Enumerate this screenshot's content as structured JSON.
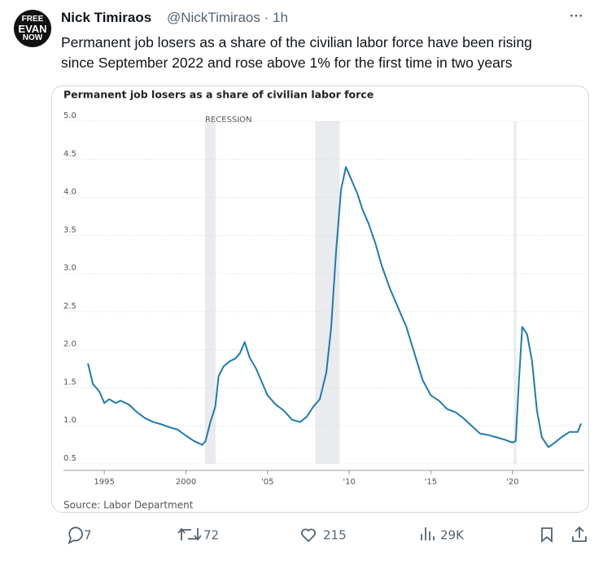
{
  "tweet": {
    "avatar_lines": [
      "FREE",
      "EVAN",
      "NOW"
    ],
    "author": "Nick Timiraos",
    "handle": "@NickTimiraos",
    "separator": "·",
    "time": "1h",
    "more": "···",
    "text_lines": [
      "Permanent job losers as a share of the civilian labor force have been rising",
      "since September 2022 and rose above 1% for the first time in two years"
    ],
    "replies": "7",
    "retweets": "72",
    "likes": "215",
    "views": "29K"
  },
  "chart_data": {
    "type": "line",
    "title": "Permanent job losers as a share of civilian labor force",
    "source": "Source: Labor Department",
    "recession_label": "RECESSION",
    "recessions": [
      [
        2001.17,
        2001.83
      ],
      [
        2007.92,
        2009.42
      ],
      [
        2020.08,
        2020.25
      ]
    ],
    "color": "#1f7bb0",
    "x": [
      1994.0,
      1994.3,
      1994.7,
      1995.0,
      1995.3,
      1995.7,
      1996.0,
      1996.5,
      1997.0,
      1997.5,
      1998.0,
      1998.5,
      1999.0,
      1999.5,
      2000.0,
      2000.5,
      2001.0,
      2001.2,
      2001.5,
      2001.8,
      2002.0,
      2002.3,
      2002.7,
      2003.0,
      2003.3,
      2003.6,
      2003.9,
      2004.3,
      2004.7,
      2005.0,
      2005.5,
      2006.0,
      2006.5,
      2007.0,
      2007.4,
      2007.8,
      2008.2,
      2008.6,
      2008.9,
      2009.2,
      2009.5,
      2009.8,
      2010.1,
      2010.5,
      2010.8,
      2011.2,
      2011.6,
      2012.0,
      2012.5,
      2013.0,
      2013.5,
      2014.0,
      2014.5,
      2015.0,
      2015.5,
      2016.0,
      2016.5,
      2017.0,
      2017.5,
      2018.0,
      2018.5,
      2019.0,
      2019.5,
      2020.0,
      2020.2,
      2020.4,
      2020.6,
      2020.9,
      2021.2,
      2021.5,
      2021.8,
      2022.2,
      2022.6,
      2023.0,
      2023.5,
      2024.0,
      2024.2
    ],
    "values": [
      1.82,
      1.55,
      1.45,
      1.3,
      1.35,
      1.3,
      1.33,
      1.28,
      1.18,
      1.1,
      1.05,
      1.02,
      0.98,
      0.95,
      0.87,
      0.8,
      0.75,
      0.8,
      1.05,
      1.25,
      1.65,
      1.78,
      1.85,
      1.88,
      1.95,
      2.1,
      1.9,
      1.75,
      1.55,
      1.4,
      1.28,
      1.2,
      1.08,
      1.05,
      1.12,
      1.25,
      1.35,
      1.7,
      2.3,
      3.3,
      4.1,
      4.4,
      4.25,
      4.05,
      3.85,
      3.65,
      3.4,
      3.1,
      2.8,
      2.55,
      2.3,
      1.95,
      1.6,
      1.4,
      1.33,
      1.22,
      1.18,
      1.1,
      1.0,
      0.9,
      0.88,
      0.85,
      0.82,
      0.78,
      0.8,
      1.6,
      2.3,
      2.2,
      1.85,
      1.2,
      0.85,
      0.72,
      0.78,
      0.85,
      0.92,
      0.92,
      1.03
    ],
    "xlim": [
      1992.5,
      2024.4
    ],
    "xticks": [
      1995,
      2000,
      {
        "value": 2005,
        "label": "'05"
      },
      {
        "value": 2010,
        "label": "'10"
      },
      {
        "value": 2015,
        "label": "'15"
      },
      {
        "value": 2020,
        "label": "'20"
      }
    ],
    "ylim": [
      0.5,
      5.0
    ],
    "yticks": [
      0.5,
      {
        "value": 1.0,
        "label": "1.0"
      },
      1.5,
      {
        "value": 2.0,
        "label": "2.0"
      },
      2.5,
      {
        "value": 3.0,
        "label": "3.0"
      },
      3.5,
      {
        "value": 4.0,
        "label": "4.0"
      },
      4.5,
      {
        "value": 5.0,
        "label": "5.0"
      }
    ],
    "grid": true
  }
}
